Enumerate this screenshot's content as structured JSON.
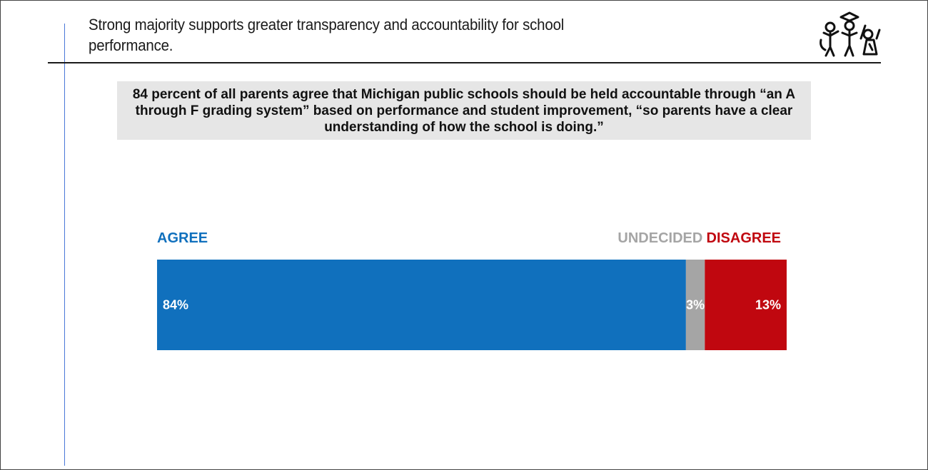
{
  "header": {
    "title": "Strong majority supports greater transparency and accountability for school performance."
  },
  "logo": {
    "icon": "children-graduation-cap-logo-icon"
  },
  "callout": {
    "text": "84 percent of all parents agree that Michigan public schools should be held accountable through “an A through F grading system” based on performance and student improvement, “so parents have a clear understanding of how the school is doing.”"
  },
  "chart_data": {
    "type": "bar",
    "orientation": "horizontal-stacked",
    "categories": [
      "AGREE",
      "UNDECIDED",
      "DISAGREE"
    ],
    "values": [
      84,
      3,
      13
    ],
    "value_labels": [
      "84%",
      "3%",
      "13%"
    ],
    "colors": [
      "#1070bd",
      "#a5a5a5",
      "#c0070f"
    ],
    "label_colors": [
      "#1070bd",
      "#a5a5a5",
      "#c0070f"
    ],
    "xlim": [
      0,
      100
    ],
    "grid": false,
    "legend_placement": "above bar"
  }
}
